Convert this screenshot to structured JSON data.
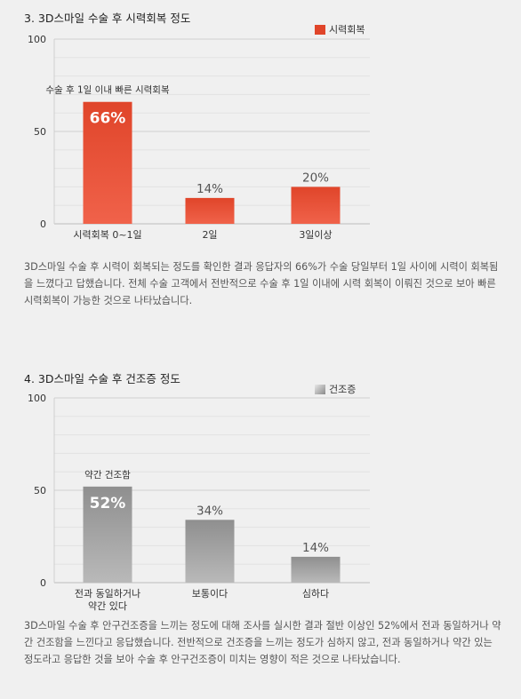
{
  "charts": [
    {
      "id": "recovery",
      "section_title": "3. 3D스마일 수술 후 시력회복 정도",
      "legend_label": "시력회복",
      "paragraph": "3D스마일 수술 후 시력이 회복되는 정도를 확인한 결과 응답자의 66%가 수술 당일부터 1일 사이에 시력이 회복됨을 느꼈다고 답했습니다. 전체 수술 고객에서 전반적으로 수술 후 1일 이내에 시력 회복이 이뤄진 것으로 보아 빠른 시력회복이 가능한 것으로 나타났습니다.",
      "colors": {
        "bar_top": "#e0452a",
        "bar_bottom": "#f0624a",
        "legend": "#e0452a"
      },
      "chart_data": {
        "type": "bar",
        "categories": [
          "시력회복 0~1일",
          "2일",
          "3일이상"
        ],
        "series": [
          {
            "name": "시력회복",
            "values": [
              66,
              14,
              20
            ]
          }
        ],
        "value_labels": [
          "66%",
          "14%",
          "20%"
        ],
        "ylim": [
          0,
          100
        ],
        "yticks": [
          0,
          50,
          100
        ],
        "grid": true,
        "legend": "top-right",
        "highlight_index": 0,
        "annotation": "수술 후 1일 이내 빠른 시력회복"
      }
    },
    {
      "id": "dryness",
      "section_title": "4. 3D스마일 수술 후 건조증 정도",
      "legend_label": "건조증",
      "paragraph": "3D스마일 수술 후 안구건조증을 느끼는 정도에 대해 조사를 실시한 결과 절반 이상인 52%에서 전과 동일하거나 약간 건조함을 느낀다고 응답했습니다. 전반적으로 건조증을 느끼는 정도가 심하지 않고, 전과 동일하거나 약간 있는 정도라고 응답한 것을 보아 수술 후 안구건조증이 미치는 영향이 적은 것으로 나타났습니다.",
      "colors": {
        "bar_top": "#8f8f8f",
        "bar_bottom": "#b9b9b9",
        "legend": "#a0a0a0"
      },
      "chart_data": {
        "type": "bar",
        "categories": [
          "전과 동일하거나 약간 있다",
          "보통이다",
          "심하다"
        ],
        "series": [
          {
            "name": "건조증",
            "values": [
              52,
              34,
              14
            ]
          }
        ],
        "value_labels": [
          "52%",
          "34%",
          "14%"
        ],
        "ylim": [
          0,
          100
        ],
        "yticks": [
          0,
          50,
          100
        ],
        "grid": true,
        "legend": "top-right",
        "highlight_index": 0,
        "annotation": "약간 건조함"
      }
    }
  ]
}
